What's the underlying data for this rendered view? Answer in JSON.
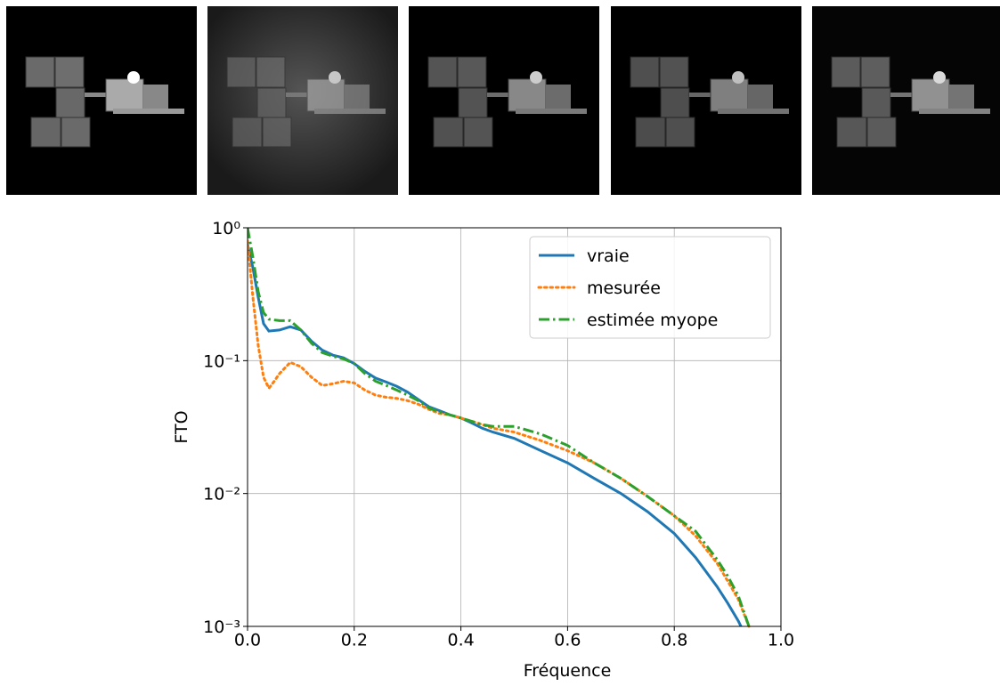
{
  "chart_data": {
    "type": "line",
    "ylabel": "FTO",
    "xlabel": "Fréquence",
    "log_y": true,
    "grid": true,
    "legend_loc": "upper right",
    "xlim": [
      0,
      1
    ],
    "ylim": [
      0.001,
      1
    ],
    "xticks": [
      {
        "value": 0,
        "label": "0.0"
      },
      {
        "value": 0.2,
        "label": "0.2"
      },
      {
        "value": 0.4,
        "label": "0.4"
      },
      {
        "value": 0.6,
        "label": "0.6"
      },
      {
        "value": 0.8,
        "label": "0.8"
      },
      {
        "value": 1,
        "label": "1.0"
      }
    ],
    "yticks": [
      {
        "value": 1,
        "label": "10⁰"
      },
      {
        "value": 0.1,
        "label": "10⁻¹"
      },
      {
        "value": 0.01,
        "label": "10⁻²"
      },
      {
        "value": 0.001,
        "label": "10⁻³"
      }
    ],
    "series": [
      {
        "name": "vraie",
        "color": "#1f77b4",
        "linestyle": "solid",
        "x": [
          0,
          0.01,
          0.02,
          0.03,
          0.04,
          0.06,
          0.08,
          0.1,
          0.12,
          0.14,
          0.16,
          0.18,
          0.2,
          0.22,
          0.24,
          0.26,
          0.28,
          0.3,
          0.32,
          0.34,
          0.36,
          0.38,
          0.4,
          0.42,
          0.44,
          0.46,
          0.5,
          0.55,
          0.6,
          0.65,
          0.7,
          0.75,
          0.8,
          0.84,
          0.88,
          0.9,
          0.92,
          0.925
        ],
        "values": [
          0.75,
          0.5,
          0.3,
          0.19,
          0.167,
          0.17,
          0.18,
          0.17,
          0.14,
          0.12,
          0.11,
          0.105,
          0.095,
          0.083,
          0.074,
          0.069,
          0.064,
          0.058,
          0.051,
          0.045,
          0.042,
          0.039,
          0.037,
          0.034,
          0.031,
          0.029,
          0.026,
          0.021,
          0.017,
          0.013,
          0.01,
          0.0073,
          0.005,
          0.0033,
          0.002,
          0.0015,
          0.0011,
          0.001
        ]
      },
      {
        "name": "mesurée",
        "color": "#ff7f0e",
        "linestyle": "dotted",
        "x": [
          0,
          0.01,
          0.02,
          0.03,
          0.04,
          0.05,
          0.06,
          0.08,
          0.1,
          0.12,
          0.14,
          0.16,
          0.18,
          0.2,
          0.22,
          0.24,
          0.26,
          0.28,
          0.3,
          0.32,
          0.34,
          0.36,
          0.38,
          0.4,
          0.42,
          0.44,
          0.46,
          0.5,
          0.55,
          0.6,
          0.65,
          0.7,
          0.75,
          0.8,
          0.84,
          0.88,
          0.9,
          0.92,
          0.94
        ],
        "values": [
          0.8,
          0.3,
          0.13,
          0.075,
          0.062,
          0.07,
          0.08,
          0.097,
          0.09,
          0.075,
          0.065,
          0.067,
          0.07,
          0.068,
          0.06,
          0.055,
          0.053,
          0.052,
          0.05,
          0.047,
          0.043,
          0.04,
          0.039,
          0.037,
          0.035,
          0.033,
          0.031,
          0.029,
          0.025,
          0.021,
          0.017,
          0.013,
          0.0095,
          0.0068,
          0.0048,
          0.003,
          0.0022,
          0.0016,
          0.001
        ]
      },
      {
        "name": "estimée myope",
        "color": "#2ca02c",
        "linestyle": "dashdot",
        "x": [
          0,
          0.01,
          0.02,
          0.03,
          0.04,
          0.06,
          0.08,
          0.1,
          0.12,
          0.14,
          0.16,
          0.18,
          0.2,
          0.22,
          0.24,
          0.26,
          0.28,
          0.3,
          0.32,
          0.34,
          0.36,
          0.38,
          0.4,
          0.42,
          0.44,
          0.46,
          0.5,
          0.55,
          0.6,
          0.65,
          0.7,
          0.75,
          0.8,
          0.84,
          0.88,
          0.9,
          0.92,
          0.94
        ],
        "values": [
          1.0,
          0.6,
          0.33,
          0.23,
          0.205,
          0.2,
          0.2,
          0.17,
          0.135,
          0.115,
          0.108,
          0.103,
          0.095,
          0.08,
          0.07,
          0.065,
          0.06,
          0.055,
          0.05,
          0.044,
          0.041,
          0.039,
          0.037,
          0.035,
          0.033,
          0.032,
          0.032,
          0.028,
          0.023,
          0.017,
          0.013,
          0.0095,
          0.0068,
          0.0052,
          0.0032,
          0.0024,
          0.0017,
          0.001
        ]
      }
    ]
  }
}
